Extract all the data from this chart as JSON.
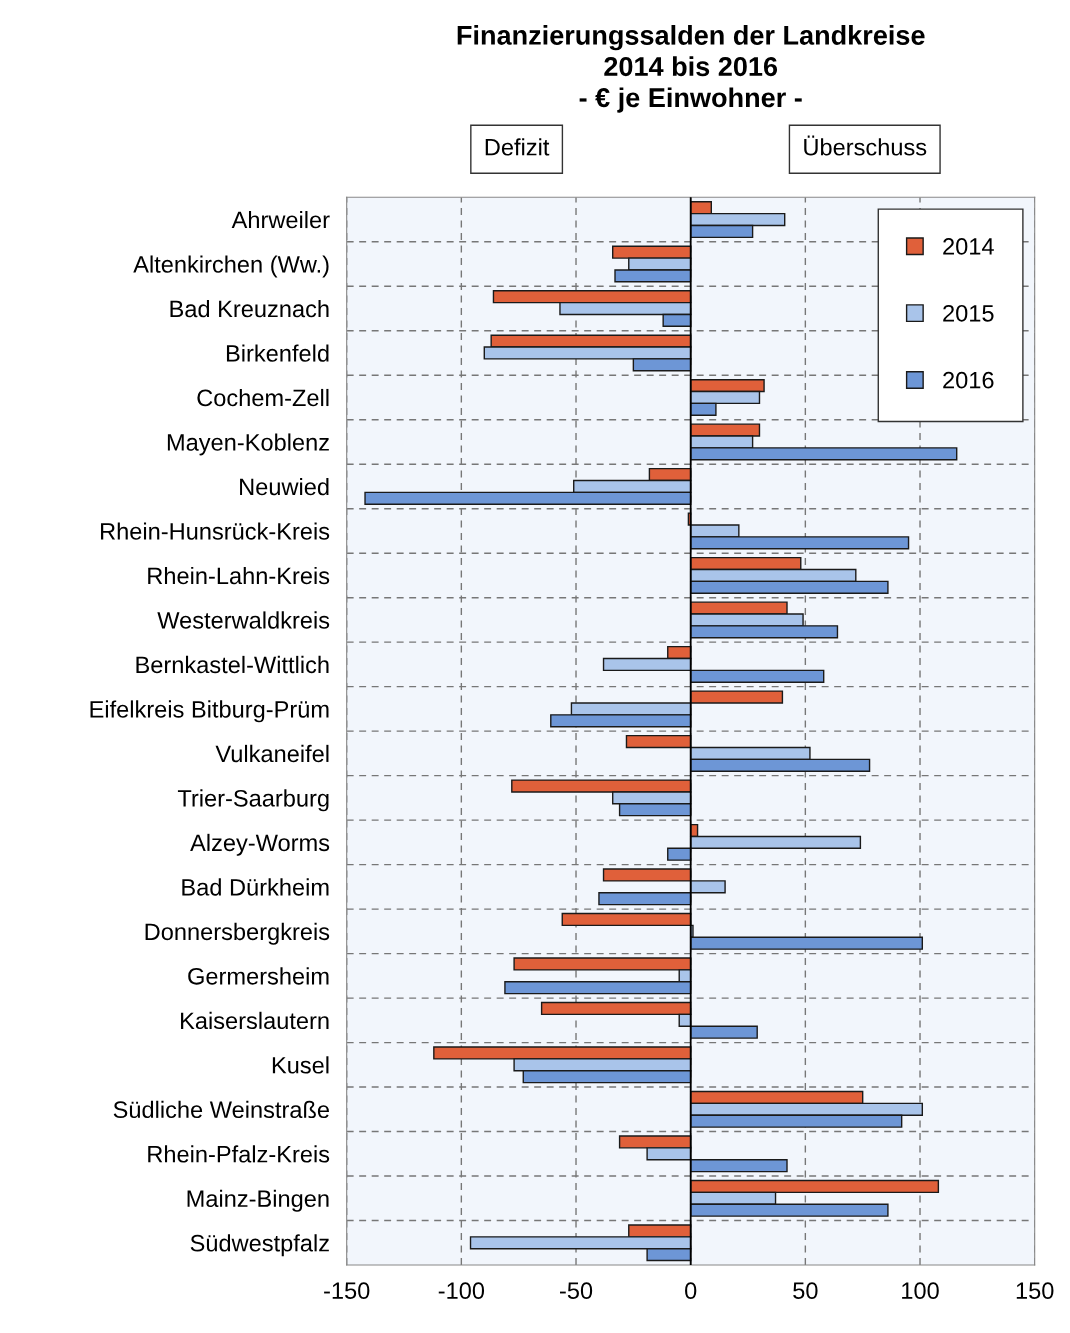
{
  "chart_data": {
    "type": "bar",
    "orientation": "horizontal",
    "title": "Finanzierungssalden der Landkreise\n2014 bis 2016\n- € je Einwohner -",
    "categories": [
      "Ahrweiler",
      "Altenkirchen (Ww.)",
      "Bad Kreuznach",
      "Birkenfeld",
      "Cochem-Zell",
      "Mayen-Koblenz",
      "Neuwied",
      "Rhein-Hunsrück-Kreis",
      "Rhein-Lahn-Kreis",
      "Westerwaldkreis",
      "Bernkastel-Wittlich",
      "Eifelkreis Bitburg-Prüm",
      "Vulkaneifel",
      "Trier-Saarburg",
      "Alzey-Worms",
      "Bad Dürkheim",
      "Donnersbergkreis",
      "Germersheim",
      "Kaiserslautern",
      "Kusel",
      "Südliche Weinstraße",
      "Rhein-Pfalz-Kreis",
      "Mainz-Bingen",
      "Südwestpfalz"
    ],
    "series": [
      {
        "name": "2014",
        "color": "#e0603a",
        "values": [
          9,
          -34,
          -86,
          -87,
          32,
          30,
          -18,
          -1,
          48,
          42,
          -10,
          40,
          -28,
          -78,
          3,
          -38,
          -56,
          -77,
          -65,
          -112,
          75,
          -31,
          108,
          -27
        ]
      },
      {
        "name": "2015",
        "color": "#a9c4ea",
        "values": [
          41,
          -27,
          -57,
          -90,
          30,
          27,
          -51,
          21,
          72,
          49,
          -38,
          -52,
          52,
          -34,
          74,
          15,
          1,
          -5,
          -5,
          -77,
          101,
          -19,
          37,
          -96
        ]
      },
      {
        "name": "2016",
        "color": "#6d96d6",
        "values": [
          27,
          -33,
          -12,
          -25,
          11,
          116,
          -142,
          95,
          86,
          64,
          58,
          -61,
          78,
          -31,
          -10,
          -40,
          101,
          -81,
          29,
          -73,
          92,
          42,
          86,
          -19
        ]
      }
    ],
    "xlim": [
      -150,
      150
    ],
    "xticks": [
      -150,
      -100,
      -50,
      0,
      50,
      100,
      150
    ],
    "annotations": [
      "Defizit",
      "Überschuss"
    ],
    "grid": true,
    "legend": "top right"
  }
}
